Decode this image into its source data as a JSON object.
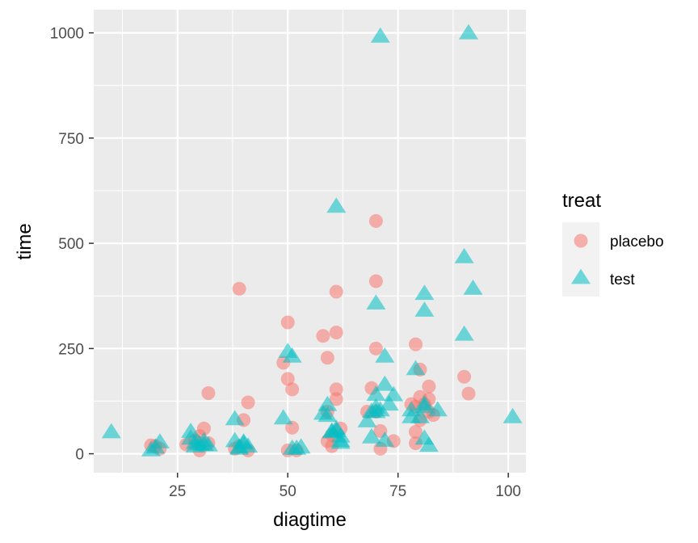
{
  "chart_data": {
    "type": "scatter",
    "xlabel": "diagtime",
    "ylabel": "time",
    "xlim": [
      6,
      104
    ],
    "ylim": [
      -45,
      1055
    ],
    "x_ticks": [
      25,
      50,
      75,
      100
    ],
    "y_ticks": [
      0,
      250,
      500,
      750,
      1000
    ],
    "x_tick_labels": [
      "25",
      "50",
      "75",
      "100"
    ],
    "y_tick_labels": [
      "0",
      "250",
      "500",
      "750",
      "1000"
    ],
    "grid": true,
    "legend": {
      "title": "treat",
      "placement": "right",
      "entries": [
        {
          "label": "placebo",
          "shape": "circle",
          "color": "#F8766D"
        },
        {
          "label": "test",
          "shape": "triangle",
          "color": "#00BFC4"
        }
      ]
    },
    "series": [
      {
        "name": "placebo",
        "shape": "circle",
        "color": "#F8766D",
        "points": [
          [
            19,
            20
          ],
          [
            20,
            18
          ],
          [
            21,
            12
          ],
          [
            27,
            22
          ],
          [
            29,
            32
          ],
          [
            30,
            8
          ],
          [
            30,
            42
          ],
          [
            31,
            60
          ],
          [
            32,
            144
          ],
          [
            32,
            25
          ],
          [
            38,
            12
          ],
          [
            39,
            18
          ],
          [
            39,
            392
          ],
          [
            40,
            80
          ],
          [
            41,
            8
          ],
          [
            41,
            122
          ],
          [
            49,
            216
          ],
          [
            50,
            8
          ],
          [
            50,
            312
          ],
          [
            50,
            178
          ],
          [
            51,
            153
          ],
          [
            51,
            62
          ],
          [
            52,
            8
          ],
          [
            58,
            280
          ],
          [
            59,
            228
          ],
          [
            59,
            100
          ],
          [
            59,
            30
          ],
          [
            60,
            18
          ],
          [
            60,
            45
          ],
          [
            61,
            288
          ],
          [
            61,
            153
          ],
          [
            61,
            130
          ],
          [
            61,
            385
          ],
          [
            62,
            60
          ],
          [
            68,
            100
          ],
          [
            69,
            156
          ],
          [
            70,
            553
          ],
          [
            70,
            410
          ],
          [
            70,
            250
          ],
          [
            70,
            100
          ],
          [
            71,
            54
          ],
          [
            71,
            12
          ],
          [
            74,
            30
          ],
          [
            78,
            118
          ],
          [
            79,
            112
          ],
          [
            79,
            260
          ],
          [
            79,
            52
          ],
          [
            79,
            25
          ],
          [
            80,
            135
          ],
          [
            80,
            200
          ],
          [
            80,
            80
          ],
          [
            81,
            118
          ],
          [
            82,
            160
          ],
          [
            82,
            130
          ],
          [
            82,
            100
          ],
          [
            83,
            92
          ],
          [
            90,
            183
          ],
          [
            91,
            143
          ]
        ]
      },
      {
        "name": "test",
        "shape": "triangle",
        "color": "#00BFC4",
        "points": [
          [
            10,
            51
          ],
          [
            19,
            8
          ],
          [
            20,
            15
          ],
          [
            21,
            27
          ],
          [
            28,
            52
          ],
          [
            28,
            36
          ],
          [
            29,
            26
          ],
          [
            29,
            17
          ],
          [
            30,
            22
          ],
          [
            31,
            30
          ],
          [
            31,
            21
          ],
          [
            32,
            20
          ],
          [
            38,
            82
          ],
          [
            38,
            30
          ],
          [
            39,
            15
          ],
          [
            39,
            12
          ],
          [
            40,
            27
          ],
          [
            40,
            24
          ],
          [
            41,
            17
          ],
          [
            49,
            84
          ],
          [
            50,
            242
          ],
          [
            51,
            231
          ],
          [
            51,
            12
          ],
          [
            52,
            12
          ],
          [
            53,
            15
          ],
          [
            58,
            95
          ],
          [
            59,
            116
          ],
          [
            59,
            90
          ],
          [
            60,
            53
          ],
          [
            60,
            51
          ],
          [
            61,
            587
          ],
          [
            61,
            59
          ],
          [
            61,
            54
          ],
          [
            62,
            41
          ],
          [
            62,
            30
          ],
          [
            62,
            26
          ],
          [
            68,
            77
          ],
          [
            69,
            100
          ],
          [
            69,
            39
          ],
          [
            70,
            357
          ],
          [
            70,
            140
          ],
          [
            70,
            110
          ],
          [
            71,
            991
          ],
          [
            71,
            103
          ],
          [
            72,
            231
          ],
          [
            72,
            164
          ],
          [
            72,
            31
          ],
          [
            73,
            117
          ],
          [
            74,
            139
          ],
          [
            78,
            103
          ],
          [
            78,
            87
          ],
          [
            79,
            201
          ],
          [
            80,
            87
          ],
          [
            81,
            380
          ],
          [
            81,
            340
          ],
          [
            81,
            118
          ],
          [
            81,
            111
          ],
          [
            81,
            36
          ],
          [
            82,
            19
          ],
          [
            84,
            103
          ],
          [
            90,
            467
          ],
          [
            90,
            283
          ],
          [
            91,
            999
          ],
          [
            92,
            392
          ],
          [
            101,
            87
          ],
          [
            70,
            99
          ]
        ]
      }
    ]
  }
}
